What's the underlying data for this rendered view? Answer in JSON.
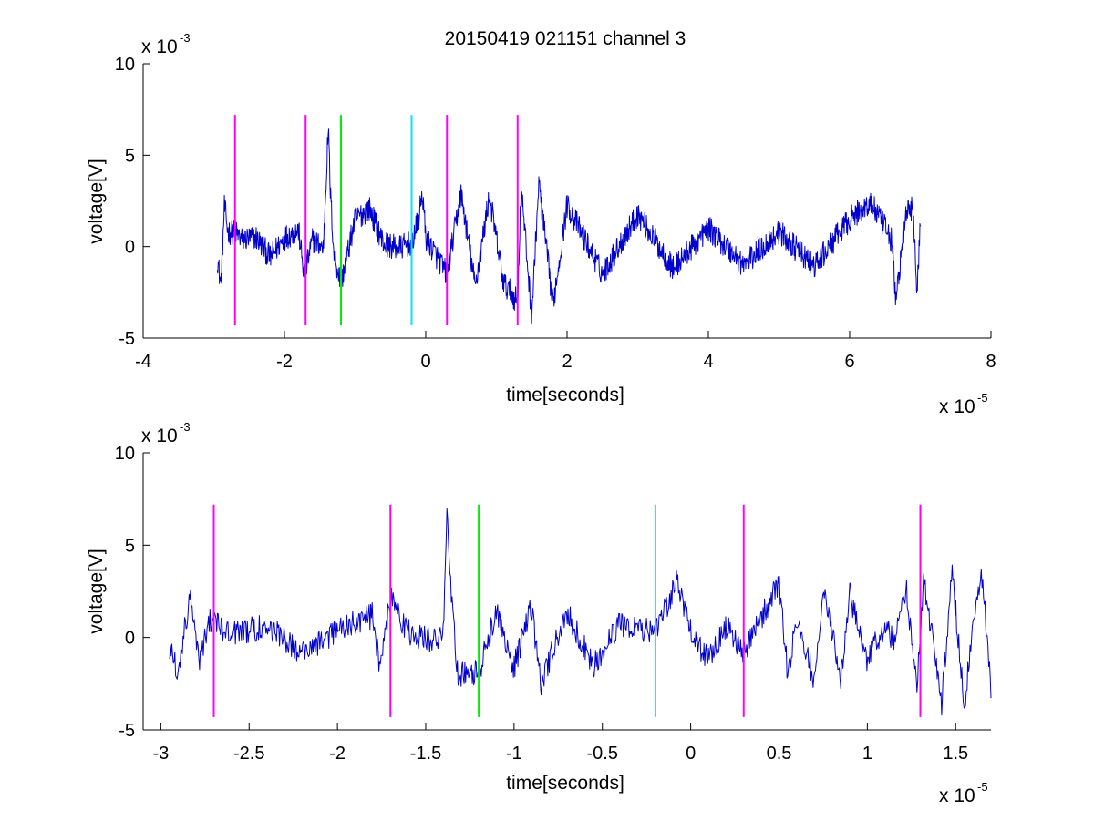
{
  "title": "20150419 021151 channel 3",
  "colors": {
    "trace": "#0000cc",
    "magenta": "#ff00ff",
    "green": "#00ee00",
    "cyan": "#00e5ff",
    "axes": "#000000"
  },
  "chart_data": [
    {
      "type": "line",
      "title": "20150419 021151 channel 3",
      "xlabel": "time[seconds]",
      "ylabel": "voltage[V]",
      "x_exponent_label": "x 10",
      "x_exponent_power": "-5",
      "y_exponent_label": "x 10",
      "y_exponent_power": "-3",
      "xlim": [
        -4,
        8
      ],
      "ylim": [
        -5,
        10
      ],
      "x_ticks": [
        -4,
        -2,
        0,
        2,
        4,
        6,
        8
      ],
      "x_tick_labels": [
        "-4",
        "-2",
        "0",
        "2",
        "4",
        "6",
        "8"
      ],
      "y_ticks": [
        -5,
        0,
        5,
        10
      ],
      "y_tick_labels": [
        "-5",
        "0",
        "5",
        "10"
      ],
      "grid": false,
      "series": [
        {
          "color": "#0000cc",
          "x_range": [
            -2.95,
            7.0
          ],
          "description_points": [
            [
              -2.95,
              -0.6
            ],
            [
              -2.9,
              -2.1
            ],
            [
              -2.85,
              2.2
            ],
            [
              -2.8,
              0.8
            ],
            [
              -2.7,
              0.8
            ],
            [
              -2.6,
              0.4
            ],
            [
              -2.4,
              0.5
            ],
            [
              -2.2,
              -0.6
            ],
            [
              -2.0,
              0.5
            ],
            [
              -1.8,
              0.9
            ],
            [
              -1.72,
              -1.6
            ],
            [
              -1.6,
              0.4
            ],
            [
              -1.45,
              -0.1
            ],
            [
              -1.38,
              6.5
            ],
            [
              -1.35,
              3.0
            ],
            [
              -1.3,
              -0.4
            ],
            [
              -1.2,
              -2.0
            ],
            [
              -1.0,
              1.5
            ],
            [
              -0.8,
              2.1
            ],
            [
              -0.6,
              0.2
            ],
            [
              -0.4,
              -0.1
            ],
            [
              -0.2,
              0.2
            ],
            [
              -0.1,
              1.5
            ],
            [
              -0.05,
              3.0
            ],
            [
              0.0,
              0.5
            ],
            [
              0.3,
              -1.5
            ],
            [
              0.5,
              2.9
            ],
            [
              0.7,
              -2.2
            ],
            [
              0.9,
              2.8
            ],
            [
              1.1,
              -2.0
            ],
            [
              1.3,
              -3.0
            ],
            [
              1.35,
              3.3
            ],
            [
              1.5,
              -3.8
            ],
            [
              1.6,
              3.5
            ],
            [
              1.8,
              -3.2
            ],
            [
              2.0,
              2.3
            ],
            [
              2.5,
              -1.5
            ],
            [
              3.0,
              1.8
            ],
            [
              3.5,
              -1.2
            ],
            [
              4.0,
              1.0
            ],
            [
              4.5,
              -1.0
            ],
            [
              5.0,
              0.8
            ],
            [
              5.5,
              -1.1
            ],
            [
              6.0,
              1.5
            ],
            [
              6.3,
              2.4
            ],
            [
              6.6,
              0.3
            ],
            [
              6.65,
              -3.0
            ],
            [
              6.8,
              1.8
            ],
            [
              6.9,
              2.2
            ],
            [
              6.95,
              -2.8
            ],
            [
              7.0,
              1.4
            ]
          ]
        }
      ],
      "markers": [
        {
          "x": -2.7,
          "color": "#ff00ff"
        },
        {
          "x": -1.7,
          "color": "#ff00ff"
        },
        {
          "x": -1.2,
          "color": "#00ee00"
        },
        {
          "x": -0.2,
          "color": "#00e5ff"
        },
        {
          "x": 0.3,
          "color": "#ff00ff"
        },
        {
          "x": 1.3,
          "color": "#ff00ff"
        }
      ],
      "marker_y_range": [
        -4.3,
        7.2
      ]
    },
    {
      "type": "line",
      "title": "",
      "xlabel": "time[seconds]",
      "ylabel": "voltage[V]",
      "x_exponent_label": "x 10",
      "x_exponent_power": "-5",
      "y_exponent_label": "x 10",
      "y_exponent_power": "-3",
      "xlim": [
        -3.1,
        1.7
      ],
      "ylim": [
        -5,
        10
      ],
      "x_ticks": [
        -3,
        -2.5,
        -2,
        -1.5,
        -1,
        -0.5,
        0,
        0.5,
        1,
        1.5
      ],
      "x_tick_labels": [
        "-3",
        "-2.5",
        "-2",
        "-1.5",
        "-1",
        "-0.5",
        "0",
        "0.5",
        "1",
        "1.5"
      ],
      "y_ticks": [
        -5,
        0,
        5,
        10
      ],
      "y_tick_labels": [
        "-5",
        "0",
        "5",
        "10"
      ],
      "grid": false,
      "series": [
        {
          "color": "#0000cc",
          "x_range": [
            -2.95,
            1.7
          ],
          "description_points": [
            [
              -2.95,
              -0.5
            ],
            [
              -2.9,
              -2.1
            ],
            [
              -2.87,
              0.4
            ],
            [
              -2.83,
              2.3
            ],
            [
              -2.78,
              -1.2
            ],
            [
              -2.72,
              0.9
            ],
            [
              -2.6,
              0.2
            ],
            [
              -2.4,
              0.6
            ],
            [
              -2.2,
              -0.8
            ],
            [
              -2.0,
              0.4
            ],
            [
              -1.8,
              1.2
            ],
            [
              -1.76,
              -1.6
            ],
            [
              -1.7,
              2.1
            ],
            [
              -1.6,
              0.3
            ],
            [
              -1.45,
              -0.2
            ],
            [
              -1.4,
              0.3
            ],
            [
              -1.38,
              6.5
            ],
            [
              -1.36,
              3.0
            ],
            [
              -1.32,
              -2.0
            ],
            [
              -1.2,
              -1.9
            ],
            [
              -1.1,
              1.5
            ],
            [
              -1.0,
              -1.6
            ],
            [
              -0.9,
              1.7
            ],
            [
              -0.85,
              -2.5
            ],
            [
              -0.7,
              1.4
            ],
            [
              -0.55,
              -1.5
            ],
            [
              -0.4,
              0.8
            ],
            [
              -0.2,
              0.2
            ],
            [
              -0.1,
              2.6
            ],
            [
              -0.08,
              3.0
            ],
            [
              0.0,
              0.3
            ],
            [
              0.1,
              -1.2
            ],
            [
              0.2,
              0.6
            ],
            [
              0.3,
              -0.8
            ],
            [
              0.4,
              1.1
            ],
            [
              0.5,
              2.9
            ],
            [
              0.55,
              -2.0
            ],
            [
              0.6,
              1.0
            ],
            [
              0.7,
              -2.3
            ],
            [
              0.75,
              2.6
            ],
            [
              0.85,
              -2.2
            ],
            [
              0.9,
              2.4
            ],
            [
              1.0,
              -1.2
            ],
            [
              1.1,
              0.7
            ],
            [
              1.15,
              -0.3
            ],
            [
              1.22,
              2.8
            ],
            [
              1.28,
              -2.8
            ],
            [
              1.32,
              3.3
            ],
            [
              1.42,
              -3.6
            ],
            [
              1.48,
              3.6
            ],
            [
              1.55,
              -3.8
            ],
            [
              1.6,
              1.2
            ],
            [
              1.65,
              3.3
            ],
            [
              1.7,
              -2.6
            ]
          ]
        }
      ],
      "markers": [
        {
          "x": -2.7,
          "color": "#ff00ff"
        },
        {
          "x": -1.7,
          "color": "#ff00ff"
        },
        {
          "x": -1.2,
          "color": "#00ee00"
        },
        {
          "x": -0.2,
          "color": "#00e5ff"
        },
        {
          "x": 0.3,
          "color": "#ff00ff"
        },
        {
          "x": 1.3,
          "color": "#ff00ff"
        }
      ],
      "marker_y_range": [
        -4.3,
        7.2
      ]
    }
  ]
}
